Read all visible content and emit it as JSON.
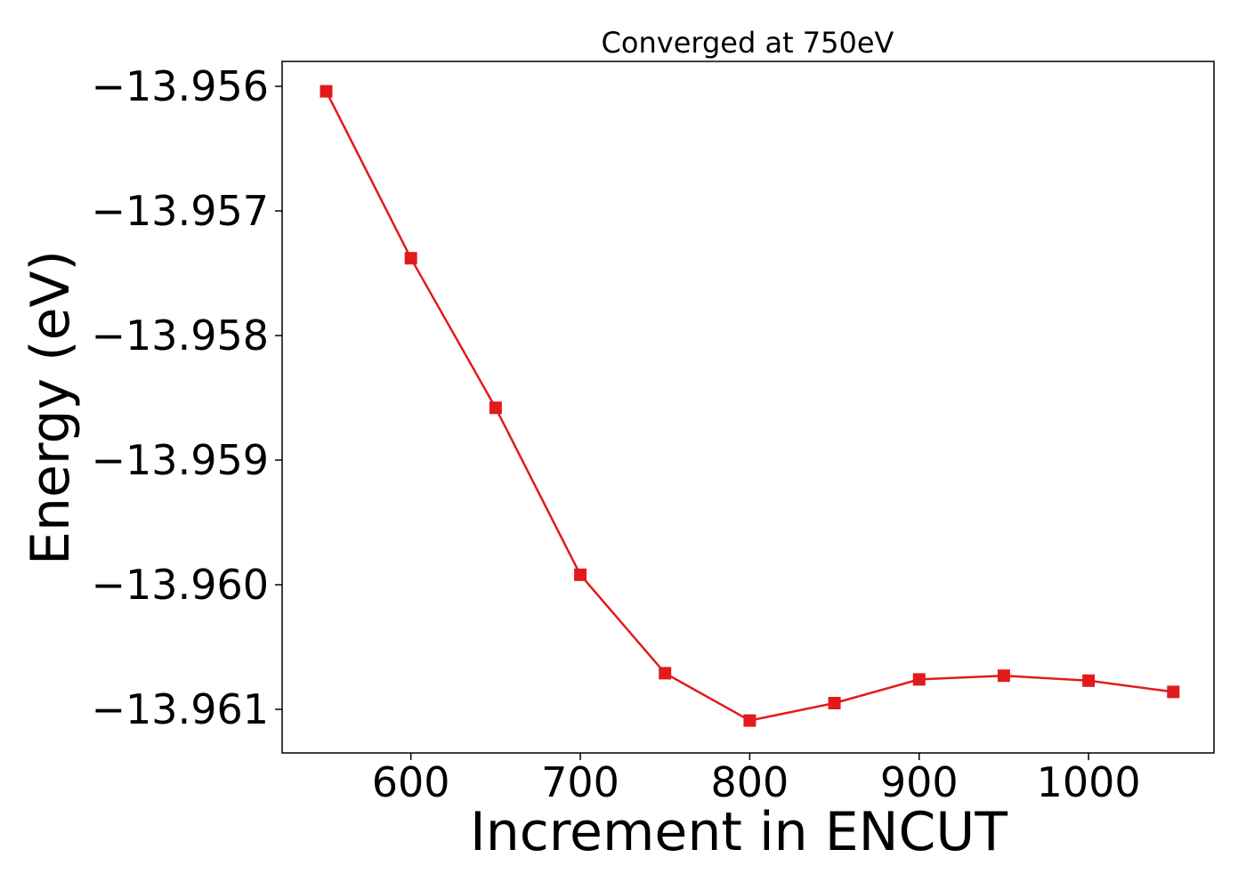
{
  "chart_data": {
    "type": "line",
    "title": "Converged at 750eV",
    "xlabel": "Increment in ENCUT",
    "ylabel": "Energy (eV)",
    "xlim": [
      524,
      1074
    ],
    "ylim": [
      -13.96135,
      -13.9558
    ],
    "x_ticks": [
      600,
      700,
      800,
      900,
      1000
    ],
    "x_tick_labels": [
      "600",
      "700",
      "800",
      "900",
      "1000"
    ],
    "y_ticks": [
      -13.956,
      -13.957,
      -13.958,
      -13.959,
      -13.96,
      -13.961
    ],
    "y_tick_labels": [
      "−13.956",
      "−13.957",
      "−13.958",
      "−13.959",
      "−13.960",
      "−13.961"
    ],
    "grid": false,
    "series": [
      {
        "color": "#e31a1c",
        "marker": "square",
        "x": [
          550,
          600,
          650,
          700,
          750,
          800,
          850,
          900,
          950,
          1000,
          1050
        ],
        "y": [
          -13.95604,
          -13.95738,
          -13.95858,
          -13.95992,
          -13.96071,
          -13.96109,
          -13.96095,
          -13.96076,
          -13.96073,
          -13.96077,
          -13.96086
        ]
      }
    ]
  }
}
